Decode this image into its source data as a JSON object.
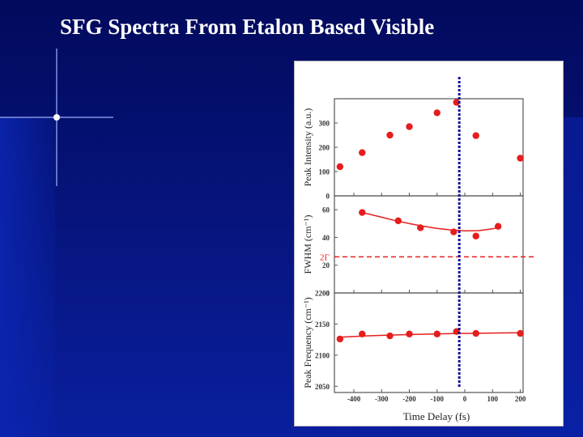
{
  "slide": {
    "title": "SFG Spectra From Etalon Based Visible",
    "colors": {
      "background": "#03106e",
      "accent": "#e51d1d",
      "marker": "#14149a"
    }
  },
  "chart_data": [
    {
      "type": "scatter",
      "title": "",
      "xlabel": "Time Delay (fs)",
      "ylabel": "Peak Intensity (a.u.)",
      "xlim": [
        -470,
        210
      ],
      "ylim": [
        0,
        400
      ],
      "x_ticks": [
        -400,
        -300,
        -200,
        -100,
        0,
        100,
        200
      ],
      "x_tick_labels": [
        "-400",
        "-300",
        "-200",
        "-100",
        "0",
        "100",
        "200"
      ],
      "y_ticks": [
        0,
        100,
        200,
        300
      ],
      "y_tick_labels": [
        "0",
        "100",
        "200",
        "300"
      ],
      "grid": false,
      "series": [
        {
          "x": [
            -450,
            -370,
            -270,
            -200,
            -100,
            -30,
            40,
            200
          ],
          "y": [
            120,
            178,
            250,
            285,
            342,
            385,
            248,
            155
          ]
        }
      ]
    },
    {
      "type": "scatter",
      "title": "",
      "xlabel": "Time Delay (fs)",
      "ylabel": "FWHM (cm⁻¹)",
      "xlim": [
        -470,
        210
      ],
      "ylim": [
        0,
        70
      ],
      "x_ticks": [
        -400,
        -300,
        -200,
        -100,
        0,
        100,
        200
      ],
      "x_tick_labels": [
        "-400",
        "-300",
        "-200",
        "-100",
        "0",
        "100",
        "200"
      ],
      "y_ticks": [
        0,
        20,
        40,
        60
      ],
      "y_tick_labels": [
        "0",
        "20",
        "40",
        "60"
      ],
      "grid": false,
      "series": [
        {
          "x": [
            -370,
            -240,
            -160,
            -40,
            40,
            120
          ],
          "y": [
            58,
            52,
            47,
            44,
            41,
            48
          ]
        }
      ],
      "fit_curve": {
        "x": [
          -370,
          -300,
          -250,
          -200,
          -150,
          -100,
          -50,
          0,
          50,
          100,
          120
        ],
        "y": [
          58,
          54.6,
          52.1,
          50,
          48.1,
          46.5,
          45.4,
          44.8,
          44.9,
          46.2,
          47.2
        ]
      },
      "reference_line": {
        "label": "2Γ",
        "y": 26
      }
    },
    {
      "type": "scatter",
      "title": "",
      "xlabel": "Time Delay (fs)",
      "ylabel": "Peak Frequency (cm⁻¹)",
      "xlim": [
        -470,
        210
      ],
      "ylim": [
        2040,
        2200
      ],
      "x_ticks": [
        -400,
        -300,
        -200,
        -100,
        0,
        100,
        200
      ],
      "x_tick_labels": [
        "-400",
        "-300",
        "-200",
        "-100",
        "0",
        "100",
        "200"
      ],
      "y_ticks": [
        2050,
        2100,
        2150,
        2200
      ],
      "y_tick_labels": [
        "2050",
        "2100",
        "2150",
        "2200"
      ],
      "grid": false,
      "series": [
        {
          "x": [
            -450,
            -370,
            -270,
            -200,
            -100,
            -30,
            40,
            200
          ],
          "y": [
            2126,
            2134,
            2131,
            2134,
            2134,
            2138,
            2135,
            2135
          ]
        }
      ],
      "fit_curve": {
        "x": [
          -450,
          -350,
          -250,
          -150,
          -50,
          50,
          150,
          200
        ],
        "y": [
          2129,
          2131,
          2132.5,
          2133.6,
          2134.6,
          2135.3,
          2135.8,
          2136
        ]
      },
      "marker_line": {
        "x": -20
      }
    }
  ]
}
